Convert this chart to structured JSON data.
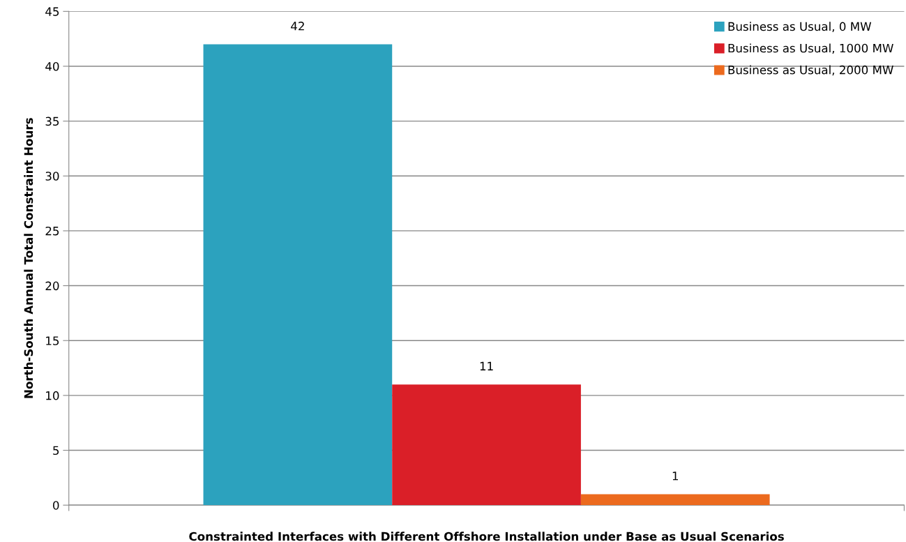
{
  "chart_data": {
    "type": "bar",
    "xlabel": "Constrainted Interfaces with Different Offshore Installation under Base as Usual Scenarios",
    "ylabel": "North-South Annual Total Constraint Hours",
    "categories": [
      null
    ],
    "series": [
      {
        "name": "Business as Usual, 0 MW",
        "color": "#2ca2be",
        "values": [
          42
        ]
      },
      {
        "name": "Business as Usual, 1000 MW",
        "color": "#da1f28",
        "values": [
          11
        ]
      },
      {
        "name": "Business as Usual, 2000 MW",
        "color": "#ec6a1e",
        "values": [
          1
        ]
      }
    ],
    "ylim": [
      0,
      45
    ],
    "yticks": [
      0,
      5,
      10,
      15,
      20,
      25,
      30,
      35,
      40,
      45
    ],
    "grid": "y",
    "legend": "top right",
    "data_labels": true
  }
}
